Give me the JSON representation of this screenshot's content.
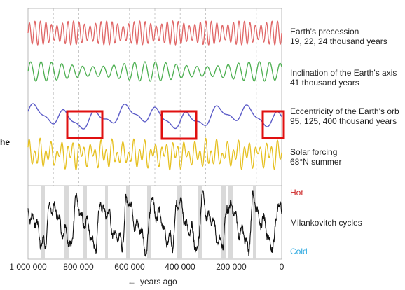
{
  "left_fragment": "he",
  "chart_data": {
    "type": "line",
    "xlabel": "years ago",
    "x_direction": "reversed",
    "xlim": [
      1000000,
      0
    ],
    "xticks": [
      "1 000 000",
      "800 000",
      "600 000",
      "400 000",
      "200 000",
      "0"
    ],
    "series": [
      {
        "name": "Earth's precession",
        "detail": "19, 22, 24 thousand years",
        "color": "#e06666"
      },
      {
        "name": "Inclination of the Earth's axis",
        "detail": "41 thousand years",
        "color": "#4caf50"
      },
      {
        "name": "Eccentricity of the Earth's orb",
        "detail": "95, 125, 400 thousand years",
        "color": "#5c5cc8"
      },
      {
        "name": "Solar forcing",
        "detail": "68°N summer",
        "color": "#e6c020"
      },
      {
        "name": "Milankovitch cycles",
        "hot_label": "Hot",
        "cold_label": "Cold",
        "hot_color": "#cc2222",
        "cold_color": "#2aa8e0",
        "color": "#111111"
      }
    ],
    "highlight_color": "#e01010"
  }
}
